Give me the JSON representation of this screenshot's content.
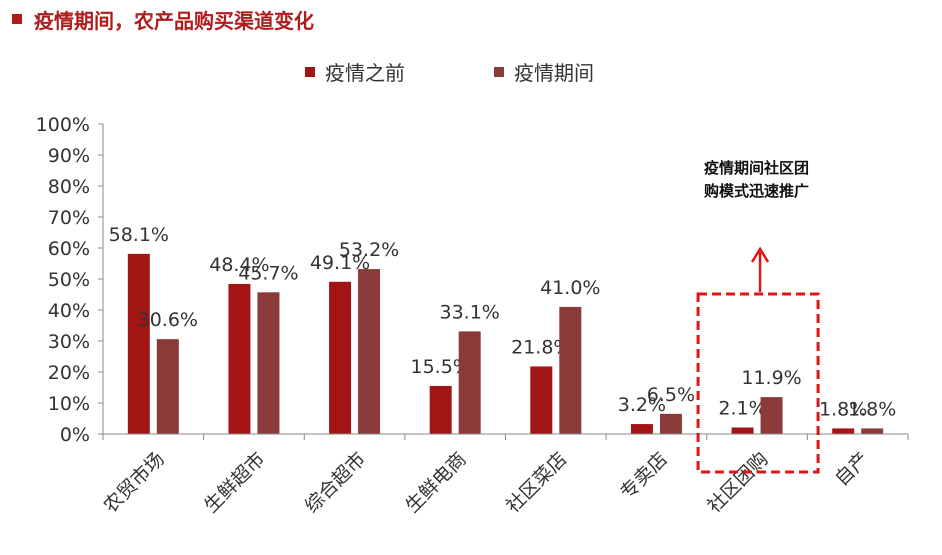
{
  "header": {
    "title": "疫情期间，农产品购买渠道变化"
  },
  "colors": {
    "before": "#a31515",
    "during": "#8b3a3a",
    "accent": "#e01515",
    "title": "#b01c1c"
  },
  "chart_data": {
    "type": "bar",
    "title": "",
    "xlabel": "",
    "ylabel": "",
    "ylim": [
      0,
      100
    ],
    "yticks": [
      "0%",
      "10%",
      "20%",
      "30%",
      "40%",
      "50%",
      "60%",
      "70%",
      "80%",
      "90%",
      "100%"
    ],
    "categories": [
      "农贸市场",
      "生鲜超市",
      "综合超市",
      "生鲜电商",
      "社区菜店",
      "专卖店",
      "社区团购",
      "自产"
    ],
    "series": [
      {
        "name": "疫情之前",
        "values": [
          58.1,
          48.4,
          49.1,
          15.5,
          21.8,
          3.2,
          2.1,
          1.8
        ],
        "labels": [
          "58.1%",
          "48.4%",
          "49.1%",
          "15.5%",
          "21.8%",
          "3.2%",
          "2.1%",
          "1.8%"
        ]
      },
      {
        "name": "疫情期间",
        "values": [
          30.6,
          45.7,
          53.2,
          33.1,
          41.0,
          6.5,
          11.9,
          1.8
        ],
        "labels": [
          "30.6%",
          "45.7%",
          "53.2%",
          "33.1%",
          "41.0%",
          "6.5%",
          "11.9%",
          "1.8%"
        ]
      }
    ],
    "legend_position": "top",
    "grid": false,
    "annotation": {
      "lines": [
        "疫情期间社区团",
        "购模式迅速推广"
      ],
      "highlight_category": "社区团购"
    }
  }
}
